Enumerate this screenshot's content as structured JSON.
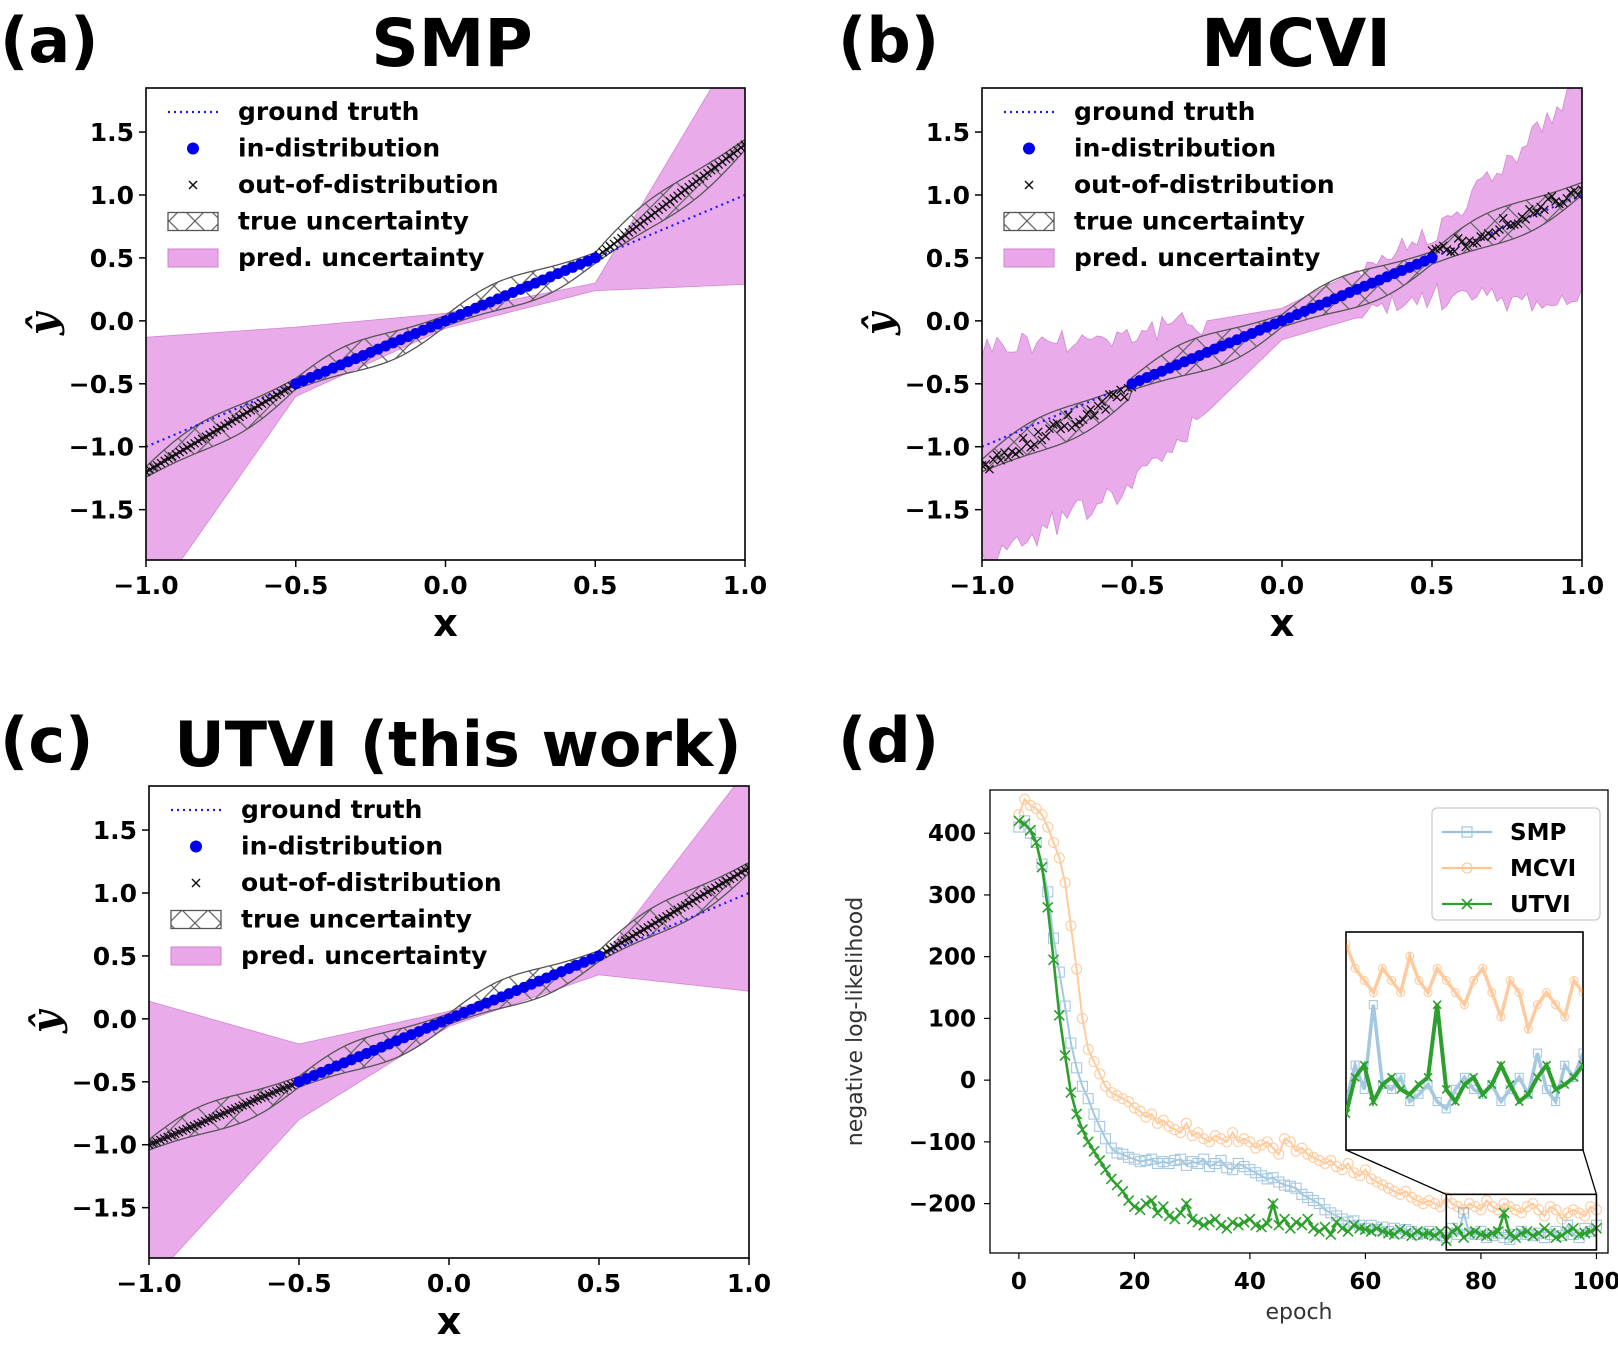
{
  "chart_data": [
    {
      "panel": "(a)",
      "title": "SMP",
      "type": "line",
      "xlabel": "x",
      "ylabel": "ŷ",
      "xlim": [
        -1.0,
        1.0
      ],
      "ylim": [
        -1.9,
        1.85
      ],
      "xticks": [
        -1.0,
        -0.5,
        0.0,
        0.5,
        1.0
      ],
      "xtick_labels": [
        "−1.0",
        "−0.5",
        "0.0",
        "0.5",
        "1.0"
      ],
      "yticks": [
        -1.5,
        -1.0,
        -0.5,
        0.0,
        0.5,
        1.0,
        1.5
      ],
      "ytick_labels": [
        "−1.5",
        "−1.0",
        "−0.5",
        "0.0",
        "0.5",
        "1.0",
        "1.5"
      ],
      "legend": [
        "ground truth",
        "in-distribution",
        "out-of-distribution",
        "true uncertainty",
        "pred. uncertainty"
      ],
      "legend_position": "upper-left",
      "ground_truth": {
        "x": [
          -1.0,
          1.0
        ],
        "y": [
          -1.0,
          1.0
        ]
      },
      "in_distribution": {
        "x_range": [
          -0.5,
          0.5
        ],
        "slope": 1.0
      },
      "ood_mean": {
        "x": [
          -1.0,
          -0.5,
          0.5,
          1.0
        ],
        "y": [
          -1.2,
          -0.5,
          0.5,
          1.4
        ]
      },
      "true_uncertainty_halfwidth": 0.12,
      "pred_uncertainty": {
        "x": [
          -1.0,
          -0.5,
          0.0,
          0.5,
          1.0
        ],
        "upper": [
          -0.13,
          -0.05,
          0.06,
          0.3,
          2.3
        ],
        "lower": [
          -2.3,
          -0.6,
          -0.06,
          0.24,
          0.29
        ]
      }
    },
    {
      "panel": "(b)",
      "title": "MCVI",
      "type": "line",
      "xlabel": "x",
      "ylabel": "ŷ",
      "xlim": [
        -1.0,
        1.0
      ],
      "ylim": [
        -1.9,
        1.85
      ],
      "xticks": [
        -1.0,
        -0.5,
        0.0,
        0.5,
        1.0
      ],
      "xtick_labels": [
        "−1.0",
        "−0.5",
        "0.0",
        "0.5",
        "1.0"
      ],
      "yticks": [
        -1.5,
        -1.0,
        -0.5,
        0.0,
        0.5,
        1.0,
        1.5
      ],
      "ytick_labels": [
        "−1.5",
        "−1.0",
        "−0.5",
        "0.0",
        "0.5",
        "1.0",
        "1.5"
      ],
      "legend": [
        "ground truth",
        "in-distribution",
        "out-of-distribution",
        "true uncertainty",
        "pred. uncertainty"
      ],
      "legend_position": "upper-left",
      "ground_truth": {
        "x": [
          -1.0,
          1.0
        ],
        "y": [
          -1.0,
          1.0
        ]
      },
      "in_distribution": {
        "x_range": [
          -0.5,
          0.5
        ],
        "slope": 1.0
      },
      "ood_mean": {
        "x": [
          -1.0,
          -0.5,
          0.5,
          1.0
        ],
        "y": [
          -1.15,
          -0.55,
          0.5,
          1.05
        ]
      },
      "true_uncertainty_halfwidth": 0.14,
      "pred_uncertainty": {
        "x": [
          -1.0,
          -0.5,
          0.0,
          0.5,
          1.0
        ],
        "upper": [
          -0.2,
          -0.1,
          0.1,
          0.7,
          1.85
        ],
        "lower": [
          -1.9,
          -1.3,
          -0.15,
          0.2,
          0.15
        ]
      }
    },
    {
      "panel": "(c)",
      "title": "UTVI (this work)",
      "type": "line",
      "xlabel": "x",
      "ylabel": "ŷ",
      "xlim": [
        -1.0,
        1.0
      ],
      "ylim": [
        -1.9,
        1.85
      ],
      "xticks": [
        -1.0,
        -0.5,
        0.0,
        0.5,
        1.0
      ],
      "xtick_labels": [
        "−1.0",
        "−0.5",
        "0.0",
        "0.5",
        "1.0"
      ],
      "yticks": [
        -1.5,
        -1.0,
        -0.5,
        0.0,
        0.5,
        1.0,
        1.5
      ],
      "ytick_labels": [
        "−1.5",
        "−1.0",
        "−0.5",
        "0.0",
        "0.5",
        "1.0",
        "1.5"
      ],
      "legend": [
        "ground truth",
        "in-distribution",
        "out-of-distribution",
        "true uncertainty",
        "pred. uncertainty"
      ],
      "legend_position": "upper-left",
      "ground_truth": {
        "x": [
          -1.0,
          1.0
        ],
        "y": [
          -1.0,
          1.0
        ]
      },
      "in_distribution": {
        "x_range": [
          -0.5,
          0.5
        ],
        "slope": 1.0
      },
      "ood_mean": {
        "x": [
          -1.0,
          -0.5,
          0.5,
          1.0
        ],
        "y": [
          -1.0,
          -0.5,
          0.5,
          1.2
        ]
      },
      "true_uncertainty_halfwidth": 0.12,
      "pred_uncertainty": {
        "x": [
          -1.0,
          -0.5,
          0.0,
          0.5,
          1.0
        ],
        "upper": [
          0.14,
          -0.2,
          0.06,
          0.45,
          2.0
        ],
        "lower": [
          -2.1,
          -0.8,
          -0.06,
          0.35,
          0.22
        ]
      }
    },
    {
      "panel": "(d)",
      "type": "line",
      "xlabel": "epoch",
      "ylabel": "negative log-likelihood",
      "xlim": [
        -5,
        102
      ],
      "ylim": [
        -280,
        470
      ],
      "xticks": [
        0,
        20,
        40,
        60,
        80,
        100
      ],
      "yticks": [
        -200,
        -100,
        0,
        100,
        200,
        300,
        400
      ],
      "ytick_labels": [
        "−200",
        "−100",
        "0",
        "100",
        "200",
        "300",
        "400"
      ],
      "legend_position": "upper-right",
      "inset_range": {
        "x": [
          74,
          100
        ],
        "y": [
          -275,
          -185
        ]
      },
      "series": [
        {
          "name": "SMP",
          "color": "#1f77b4",
          "marker": "square",
          "values": [
            410,
            420,
            400,
            385,
            350,
            305,
            230,
            175,
            120,
            60,
            20,
            -10,
            -30,
            -55,
            -75,
            -95,
            -110,
            -118,
            -120,
            -125,
            -128,
            -132,
            -130,
            -128,
            -135,
            -132,
            -135,
            -130,
            -128,
            -138,
            -132,
            -135,
            -128,
            -140,
            -135,
            -130,
            -142,
            -145,
            -135,
            -140,
            -145,
            -150,
            -155,
            -160,
            -158,
            -165,
            -170,
            -172,
            -175,
            -185,
            -190,
            -195,
            -200,
            -210,
            -215,
            -220,
            -225,
            -230,
            -228,
            -235,
            -240,
            -235,
            -242,
            -238,
            -245,
            -240,
            -248,
            -242,
            -245,
            -250,
            -248,
            -245,
            -250,
            -252,
            -255,
            -240,
            -250,
            -215,
            -248,
            -250,
            -245,
            -255,
            -252,
            -248,
            -255,
            -258,
            -250,
            -245,
            -250,
            -252,
            -248,
            -255,
            -250,
            -245,
            -252,
            -235,
            -250,
            -255,
            -240,
            -245,
            -235
          ]
        },
        {
          "name": "MCVI",
          "color": "#ff7f0e",
          "marker": "circle",
          "values": [
            430,
            455,
            445,
            440,
            430,
            410,
            385,
            360,
            320,
            250,
            180,
            100,
            50,
            30,
            10,
            -10,
            -20,
            -25,
            -30,
            -35,
            -45,
            -50,
            -60,
            -55,
            -70,
            -65,
            -75,
            -80,
            -85,
            -70,
            -90,
            -85,
            -95,
            -100,
            -90,
            -95,
            -100,
            -85,
            -100,
            -95,
            -100,
            -110,
            -105,
            -100,
            -110,
            -120,
            -95,
            -100,
            -115,
            -110,
            -120,
            -125,
            -130,
            -135,
            -130,
            -140,
            -145,
            -135,
            -150,
            -155,
            -145,
            -160,
            -165,
            -170,
            -175,
            -180,
            -185,
            -180,
            -190,
            -195,
            -200,
            -195,
            -200,
            -205,
            -190,
            -200,
            -205,
            -210,
            -200,
            -205,
            -210,
            -195,
            -205,
            -210,
            -200,
            -205,
            -210,
            -215,
            -205,
            -200,
            -210,
            -220,
            -205,
            -210,
            -225,
            -215,
            -210,
            -215,
            -220,
            -205,
            -210
          ]
        },
        {
          "name": "UTVI",
          "color": "#2ca02c",
          "marker": "x",
          "values": [
            420,
            415,
            405,
            385,
            345,
            280,
            195,
            105,
            40,
            -20,
            -55,
            -80,
            -100,
            -115,
            -130,
            -145,
            -160,
            -170,
            -180,
            -195,
            -205,
            -210,
            -200,
            -195,
            -215,
            -205,
            -220,
            -225,
            -215,
            -200,
            -225,
            -230,
            -235,
            -230,
            -225,
            -235,
            -240,
            -230,
            -235,
            -230,
            -225,
            -235,
            -238,
            -232,
            -200,
            -235,
            -225,
            -240,
            -230,
            -235,
            -225,
            -240,
            -245,
            -238,
            -250,
            -230,
            -240,
            -245,
            -235,
            -240,
            -242,
            -245,
            -240,
            -245,
            -248,
            -250,
            -242,
            -248,
            -252,
            -245,
            -250,
            -248,
            -252,
            -245,
            -260,
            -245,
            -240,
            -255,
            -248,
            -245,
            -250,
            -252,
            -248,
            -245,
            -215,
            -250,
            -255,
            -248,
            -245,
            -252,
            -248,
            -240,
            -248,
            -255,
            -252,
            -245,
            -240,
            -250,
            -248,
            -245,
            -240
          ]
        }
      ]
    }
  ],
  "panel_labels": {
    "a": "(a)",
    "b": "(b)",
    "c": "(c)",
    "d": "(d)"
  },
  "titles": {
    "a": "SMP",
    "b": "MCVI",
    "c": "UTVI (this work)"
  },
  "axis_labels": {
    "x": "x",
    "yhat": "ŷ",
    "epoch": "epoch",
    "nll": "negative log-likelihood"
  },
  "legend_top": [
    "ground truth",
    "in-distribution",
    "out-of-distribution",
    "true uncertainty",
    "pred. uncertainty"
  ],
  "legend_d": [
    "SMP",
    "MCVI",
    "UTVI"
  ],
  "colors": {
    "gt": "#1a1aff",
    "indist": "#0000ee",
    "pred_fill": "#e9a7e9",
    "hatch": "#555555",
    "smp": "#1f77b4",
    "mcvi": "#ff7f0e",
    "utvi": "#2ca02c"
  }
}
